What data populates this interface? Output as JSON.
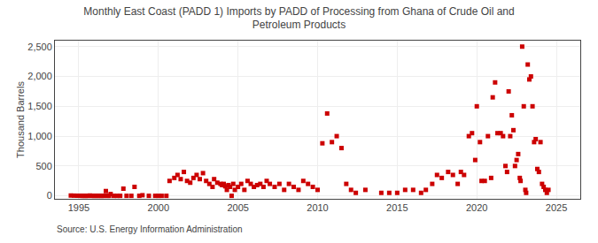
{
  "chart_data": {
    "type": "scatter",
    "title": "Monthly East Coast (PADD 1) Imports by PADD of Processing from Ghana of Crude Oil and\nPetroleum Products",
    "ylabel": "Thousand Barrels",
    "annotations": [
      "Source: U.S. Energy Information Administration"
    ],
    "color": "#cc0000",
    "marker": "square",
    "grid": true,
    "xlim": [
      1993.5,
      2026.5
    ],
    "ylim": [
      -50,
      2600
    ],
    "xticks": [
      1995,
      2000,
      2005,
      2010,
      2015,
      2020,
      2025
    ],
    "yticks": [
      0,
      500,
      {
        "value": 1000,
        "label": "1,000"
      },
      {
        "value": 1500,
        "label": "1,500"
      },
      {
        "value": 2000,
        "label": "2,000"
      },
      {
        "value": 2500,
        "label": "2,500"
      }
    ],
    "x": [
      1994.5,
      1994.7,
      1994.9,
      1995.0,
      1995.1,
      1995.2,
      1995.3,
      1995.4,
      1995.5,
      1995.6,
      1995.7,
      1995.8,
      1995.9,
      1996.0,
      1996.1,
      1996.2,
      1996.3,
      1996.4,
      1996.5,
      1996.6,
      1996.7,
      1996.8,
      1996.9,
      1997.0,
      1997.2,
      1997.4,
      1997.6,
      1997.8,
      1998.0,
      1998.3,
      1998.5,
      1998.8,
      1999.0,
      1999.4,
      1999.8,
      2000.0,
      2000.2,
      2000.5,
      2000.7,
      2001.0,
      2001.2,
      2001.4,
      2001.6,
      2001.8,
      2002.0,
      2002.2,
      2002.4,
      2002.6,
      2002.8,
      2003.0,
      2003.2,
      2003.4,
      2003.5,
      2003.7,
      2003.9,
      2004.0,
      2004.1,
      2004.2,
      2004.3,
      2004.4,
      2004.5,
      2004.6,
      2004.7,
      2004.8,
      2005.0,
      2005.2,
      2005.4,
      2005.6,
      2005.8,
      2006.0,
      2006.2,
      2006.4,
      2006.6,
      2006.8,
      2007.0,
      2007.3,
      2007.6,
      2007.9,
      2008.2,
      2008.5,
      2008.8,
      2009.1,
      2009.4,
      2009.7,
      2010.0,
      2010.3,
      2010.6,
      2010.9,
      2011.2,
      2011.5,
      2011.8,
      2012.1,
      2012.4,
      2013.0,
      2014.0,
      2014.5,
      2015.0,
      2015.5,
      2016.0,
      2016.5,
      2016.8,
      2017.2,
      2017.5,
      2017.8,
      2018.2,
      2018.5,
      2018.8,
      2019.0,
      2019.2,
      2019.5,
      2019.7,
      2019.9,
      2020.0,
      2020.2,
      2020.3,
      2020.5,
      2020.7,
      2020.9,
      2021.0,
      2021.15,
      2021.3,
      2021.5,
      2021.65,
      2021.8,
      2021.9,
      2022.0,
      2022.1,
      2022.2,
      2022.3,
      2022.4,
      2022.5,
      2022.6,
      2022.7,
      2022.75,
      2022.85,
      2022.95,
      2023.05,
      2023.1,
      2023.2,
      2023.3,
      2023.4,
      2023.5,
      2023.6,
      2023.7,
      2023.8,
      2023.9,
      2024.0,
      2024.1,
      2024.2,
      2024.3,
      2024.4,
      2024.5
    ],
    "values": [
      5,
      3,
      2,
      2,
      1,
      0,
      0,
      0,
      0,
      0,
      5,
      0,
      0,
      0,
      0,
      0,
      0,
      0,
      0,
      0,
      80,
      0,
      0,
      30,
      0,
      0,
      0,
      120,
      0,
      0,
      150,
      0,
      10,
      0,
      0,
      0,
      0,
      0,
      250,
      300,
      350,
      280,
      400,
      250,
      220,
      300,
      350,
      280,
      380,
      250,
      200,
      150,
      280,
      220,
      200,
      180,
      200,
      160,
      100,
      180,
      150,
      0,
      200,
      100,
      150,
      200,
      100,
      250,
      200,
      150,
      180,
      200,
      150,
      250,
      200,
      150,
      200,
      100,
      200,
      150,
      100,
      250,
      200,
      150,
      100,
      880,
      1380,
      900,
      1000,
      800,
      200,
      100,
      50,
      100,
      50,
      50,
      50,
      100,
      100,
      50,
      100,
      200,
      350,
      300,
      400,
      350,
      200,
      400,
      350,
      1000,
      1050,
      600,
      1500,
      900,
      250,
      250,
      1000,
      300,
      1650,
      1900,
      1050,
      1050,
      1000,
      500,
      400,
      1750,
      1000,
      1350,
      1100,
      500,
      600,
      700,
      300,
      250,
      2500,
      1500,
      100,
      50,
      2200,
      1950,
      2000,
      1500,
      900,
      950,
      450,
      400,
      900,
      200,
      150,
      100,
      50,
      100
    ]
  }
}
